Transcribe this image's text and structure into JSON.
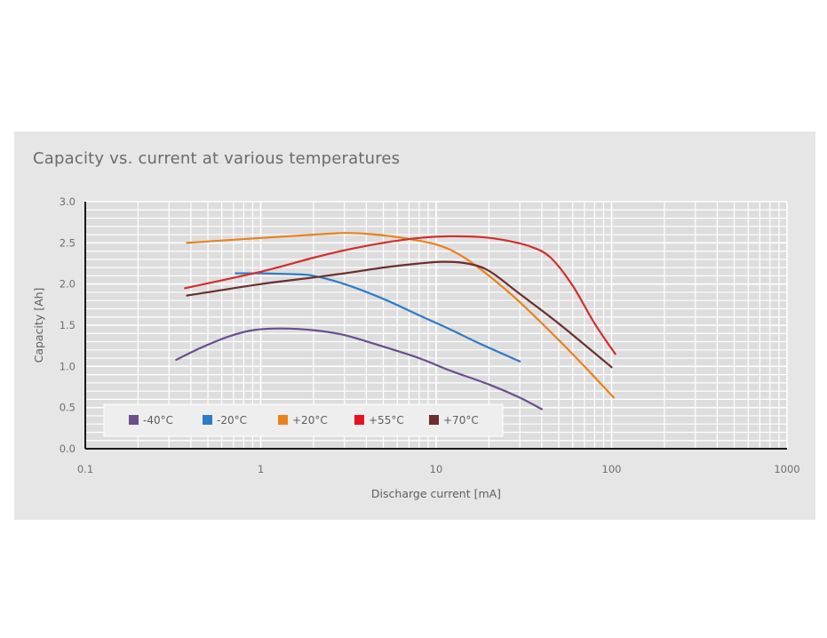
{
  "chart_data": {
    "type": "line",
    "title": "Capacity vs. current at various temperatures",
    "xlabel": "Discharge current [mA]",
    "ylabel": "Capacity [Ah]",
    "xscale": "log",
    "xlim": [
      0.1,
      1000
    ],
    "ylim": [
      0,
      3.0
    ],
    "xticks": [
      "0.1",
      "1",
      "10",
      "100",
      "1000"
    ],
    "yticks": [
      "0.0",
      "0.5",
      "1.0",
      "1.5",
      "2.0",
      "2.5",
      "3.0"
    ],
    "grid": true,
    "legend_position": "bottom-left",
    "series": [
      {
        "name": "-40°C",
        "color": "#6a4f8c",
        "points": [
          [
            0.33,
            1.08
          ],
          [
            0.45,
            1.22
          ],
          [
            0.65,
            1.36
          ],
          [
            0.9,
            1.44
          ],
          [
            1.3,
            1.46
          ],
          [
            2.0,
            1.44
          ],
          [
            3.0,
            1.38
          ],
          [
            5.0,
            1.24
          ],
          [
            8.0,
            1.1
          ],
          [
            12.0,
            0.95
          ],
          [
            20.0,
            0.78
          ],
          [
            30.0,
            0.62
          ],
          [
            40.0,
            0.48
          ]
        ]
      },
      {
        "name": "-20°C",
        "color": "#2e7bc6",
        "points": [
          [
            0.72,
            2.13
          ],
          [
            1.0,
            2.13
          ],
          [
            1.5,
            2.12
          ],
          [
            2.0,
            2.1
          ],
          [
            3.0,
            2.0
          ],
          [
            5.0,
            1.82
          ],
          [
            8.0,
            1.62
          ],
          [
            12.0,
            1.45
          ],
          [
            18.0,
            1.27
          ],
          [
            30.0,
            1.06
          ]
        ]
      },
      {
        "name": "+20°C",
        "color": "#e8821e",
        "points": [
          [
            0.38,
            2.5
          ],
          [
            1.0,
            2.56
          ],
          [
            2.0,
            2.6
          ],
          [
            3.0,
            2.62
          ],
          [
            4.0,
            2.61
          ],
          [
            6.0,
            2.57
          ],
          [
            10.0,
            2.48
          ],
          [
            14.0,
            2.34
          ],
          [
            20.0,
            2.1
          ],
          [
            30.0,
            1.78
          ],
          [
            50.0,
            1.32
          ],
          [
            70.0,
            1.0
          ],
          [
            103.0,
            0.62
          ]
        ]
      },
      {
        "name": "+55°C",
        "color": "#d32f2f",
        "points": [
          [
            0.37,
            1.95
          ],
          [
            1.0,
            2.15
          ],
          [
            2.0,
            2.32
          ],
          [
            3.0,
            2.41
          ],
          [
            5.0,
            2.5
          ],
          [
            8.0,
            2.56
          ],
          [
            12.0,
            2.58
          ],
          [
            18.0,
            2.57
          ],
          [
            25.0,
            2.53
          ],
          [
            35.0,
            2.45
          ],
          [
            45.0,
            2.32
          ],
          [
            60.0,
            1.98
          ],
          [
            80.0,
            1.52
          ],
          [
            105.0,
            1.15
          ]
        ]
      },
      {
        "name": "+70°C",
        "color": "#6b2e2e",
        "points": [
          [
            0.38,
            1.86
          ],
          [
            1.0,
            2.0
          ],
          [
            2.0,
            2.08
          ],
          [
            3.0,
            2.13
          ],
          [
            5.0,
            2.2
          ],
          [
            8.0,
            2.25
          ],
          [
            11.0,
            2.27
          ],
          [
            15.0,
            2.25
          ],
          [
            20.0,
            2.16
          ],
          [
            30.0,
            1.88
          ],
          [
            50.0,
            1.52
          ],
          [
            100.0,
            0.99
          ]
        ]
      }
    ]
  }
}
